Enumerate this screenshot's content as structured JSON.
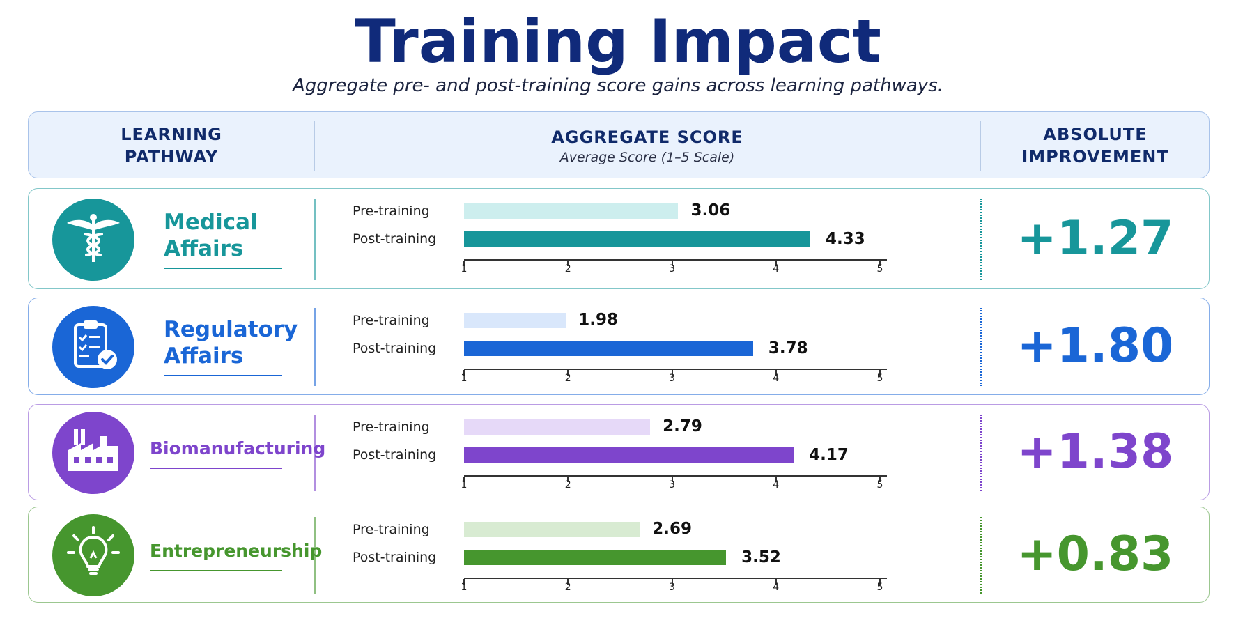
{
  "title": "Training Impact",
  "subtitle": "Aggregate pre- and post-training score gains across learning pathways.",
  "header": {
    "col1_line1": "LEARNING",
    "col1_line2": "PATHWAY",
    "col2_title": "AGGREGATE SCORE",
    "col2_sub": "Average Score (1–5 Scale)",
    "col3_line1": "ABSOLUTE",
    "col3_line2": "IMPROVEMENT"
  },
  "chart_data": {
    "type": "bar",
    "orientation": "horizontal",
    "xlabel": "Average Score (1–5 Scale)",
    "xlim": [
      1,
      5
    ],
    "ticks": [
      "1",
      "2",
      "3",
      "4",
      "5"
    ],
    "series_labels": [
      "Pre-training",
      "Post-training"
    ],
    "pathways": [
      {
        "name_lines": [
          "Medical",
          "Affairs"
        ],
        "icon": "caduceus-icon",
        "color": "#17969a",
        "light": "#cdeeee",
        "pre": 3.06,
        "post": 4.33,
        "pre_label": "3.06",
        "post_label": "4.33",
        "improvement": "+1.27"
      },
      {
        "name_lines": [
          "Regulatory",
          "Affairs"
        ],
        "icon": "clipboard-check-icon",
        "color": "#1a66d6",
        "light": "#d9e7fb",
        "pre": 1.98,
        "post": 3.78,
        "pre_label": "1.98",
        "post_label": "3.78",
        "improvement": "+1.80"
      },
      {
        "name_lines": [
          "Biomanufacturing"
        ],
        "icon": "factory-icon",
        "color": "#7e45cc",
        "light": "#e6d9f8",
        "pre": 2.79,
        "post": 4.17,
        "pre_label": "2.79",
        "post_label": "4.17",
        "improvement": "+1.38"
      },
      {
        "name_lines": [
          "Entrepreneurship"
        ],
        "icon": "lightbulb-icon",
        "color": "#46962e",
        "light": "#d8ebd2",
        "pre": 2.69,
        "post": 3.52,
        "pre_label": "2.69",
        "post_label": "3.52",
        "improvement": "+0.83"
      }
    ]
  }
}
